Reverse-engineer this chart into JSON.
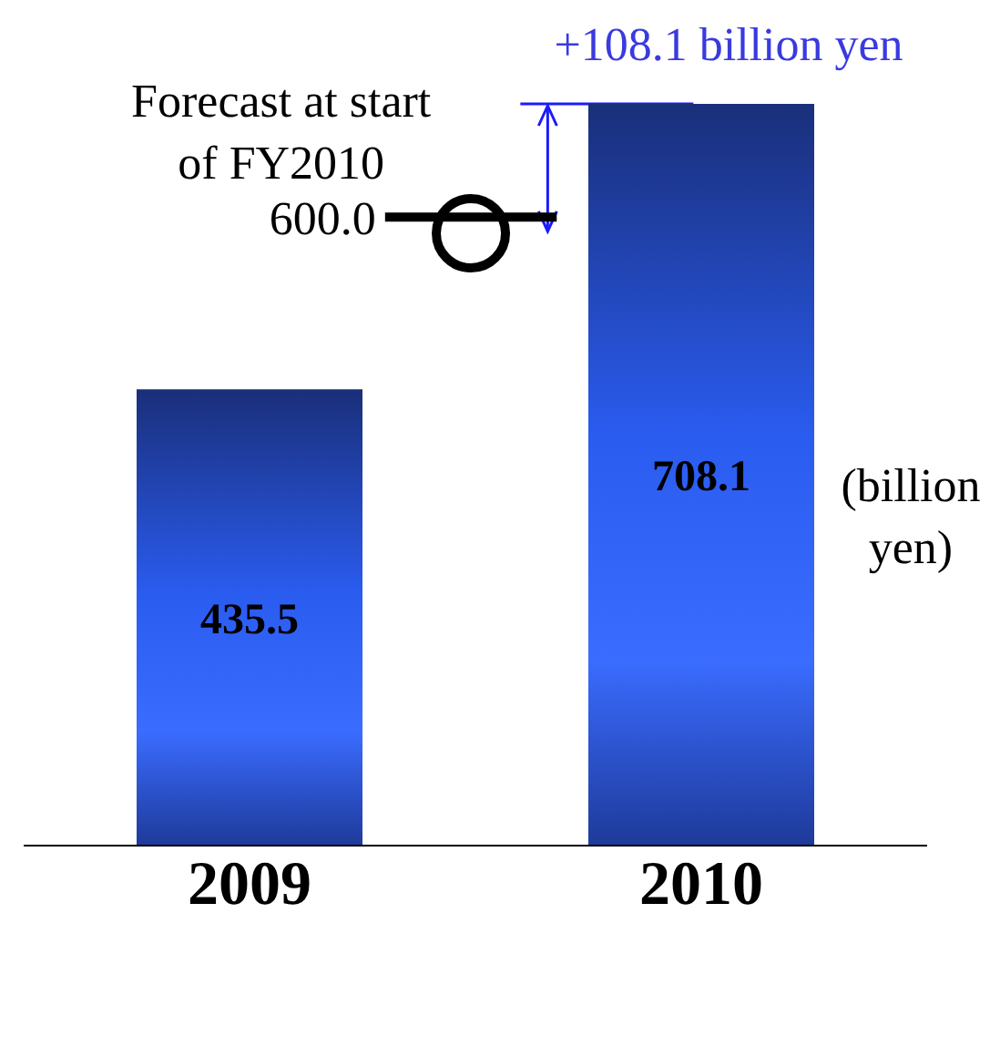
{
  "chart_data": {
    "type": "bar",
    "categories": [
      "2009",
      "2010"
    ],
    "values": [
      435.5,
      708.1
    ],
    "color": "#2a5cf0",
    "data_labels": true,
    "ref_lines": [
      {
        "axis": "y",
        "value": 600,
        "label": "600.0",
        "color": "#000000"
      }
    ],
    "annotations": [
      "Forecast at start of FY2010",
      "+108.1 billion yen",
      "(billion yen)"
    ]
  }
}
